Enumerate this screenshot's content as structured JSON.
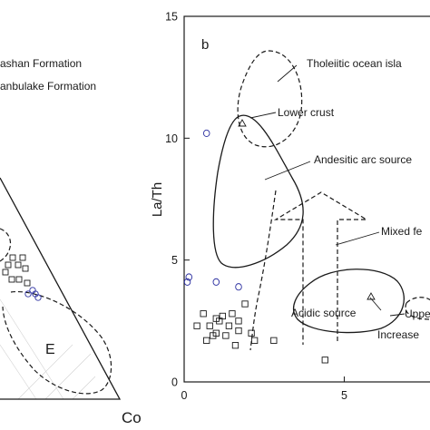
{
  "figure": {
    "legend": [
      "ashan Formation",
      "anbulake Formation"
    ]
  },
  "chart_data": [
    {
      "type": "scatter",
      "panel": "a",
      "subtype": "ternary",
      "apex_labels": [
        "Co"
      ],
      "field_labels": [
        "E"
      ],
      "series": [
        {
          "symbol": "square",
          "points": [
            [
              0.08,
              0.84
            ],
            [
              0.11,
              0.82
            ],
            [
              0.16,
              0.8
            ],
            [
              0.22,
              0.82
            ],
            [
              0.27,
              0.8
            ],
            [
              0.3,
              0.83
            ],
            [
              0.32,
              0.87
            ],
            [
              0.23,
              0.86
            ],
            [
              0.15,
              0.86
            ]
          ]
        },
        {
          "symbol": "circle",
          "points": [
            [
              0.33,
              0.9
            ],
            [
              0.38,
              0.89
            ],
            [
              0.41,
              0.9
            ],
            [
              0.44,
              0.91
            ]
          ]
        }
      ]
    },
    {
      "type": "scatter",
      "panel": "b",
      "panel_label": "b",
      "xlabel": "",
      "ylabel": "La/Th",
      "xlim": [
        0,
        7.5
      ],
      "ylim": [
        0,
        15
      ],
      "xticks": [
        0,
        5
      ],
      "yticks": [
        0,
        5,
        10,
        15
      ],
      "annotations": [
        "Tholeiitic ocean isla",
        "Lower crust",
        "Andesitic arc source",
        "Mixed fe",
        "Acidic source",
        "Uppe",
        "Increase"
      ],
      "series": [
        {
          "symbol": "square",
          "points": [
            [
              0.4,
              2.3
            ],
            [
              0.8,
              2.3
            ],
            [
              1.1,
              2.5
            ],
            [
              1.4,
              2.3
            ],
            [
              1.7,
              2.1
            ],
            [
              0.9,
              1.9
            ],
            [
              1.3,
              1.9
            ],
            [
              2.1,
              2.0
            ],
            [
              1.0,
              2.6
            ],
            [
              1.5,
              2.8
            ],
            [
              0.6,
              2.8
            ],
            [
              1.2,
              2.7
            ],
            [
              1.7,
              2.5
            ],
            [
              0.7,
              1.7
            ],
            [
              1.6,
              1.5
            ],
            [
              2.2,
              1.7
            ],
            [
              2.8,
              1.7
            ],
            [
              1.9,
              3.2
            ],
            [
              4.4,
              0.9
            ],
            [
              1.0,
              2.0
            ]
          ]
        },
        {
          "symbol": "circle",
          "points": [
            [
              0.1,
              4.1
            ],
            [
              0.15,
              4.3
            ],
            [
              0.7,
              10.2
            ],
            [
              1.0,
              4.1
            ],
            [
              1.7,
              3.9
            ]
          ]
        }
      ]
    }
  ]
}
